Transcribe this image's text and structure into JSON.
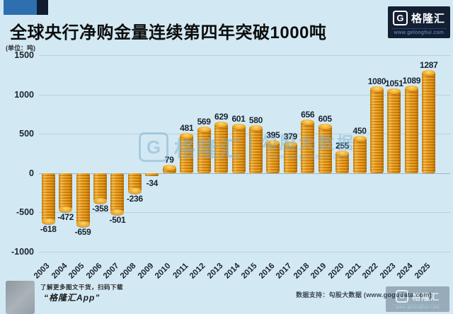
{
  "title": "全球央行净购金量连续第四年突破1000吨",
  "unit_label": "(单位：吨)",
  "brand": {
    "logo_letter": "G",
    "logo_name": "格隆汇",
    "logo_url": "www.gelonghui.com"
  },
  "watermark": {
    "logo_letter": "G",
    "logo_name": "格隆汇",
    "source_name": "勾股大数据",
    "source_url": "www.gogudata.com"
  },
  "footer": {
    "left_line1": "了解更多图文干货，扫码下载",
    "left_line2": "“格隆汇App”",
    "right_text": "数据支持：勾股大数据 (www.gogudata.com)"
  },
  "colors": {
    "background": "#d2e9f4",
    "bar_main": "#e89b16",
    "bar_ridge": "#cd7d0d",
    "bar_cap": "#f3bb45",
    "logo_navy": "#131f33",
    "accent_blue": "#2e6fb0",
    "gridline": "#bad0db"
  },
  "chart_data": {
    "type": "bar",
    "title": "全球央行净购金量连续第四年突破1000吨",
    "xlabel": "",
    "ylabel": "吨",
    "categories": [
      "2003",
      "2004",
      "2005",
      "2006",
      "2007",
      "2008",
      "2009",
      "2010",
      "2011",
      "2012",
      "2013",
      "2014",
      "2015",
      "2016",
      "2017",
      "2018",
      "2019",
      "2020",
      "2021",
      "2022",
      "2023",
      "2024",
      "2025"
    ],
    "values": [
      -618,
      -472,
      -659,
      -358,
      -501,
      -236,
      -34,
      79,
      481,
      569,
      629,
      601,
      580,
      395,
      379,
      656,
      605,
      255,
      450,
      1080,
      1051,
      1089,
      1287
    ],
    "ylim": [
      -1000,
      1500
    ],
    "yticks": [
      1500,
      1000,
      500,
      0,
      -500,
      -1000
    ],
    "grid": true,
    "legend": false,
    "bar_style": "gold-coin-stack",
    "value_labels": true
  }
}
